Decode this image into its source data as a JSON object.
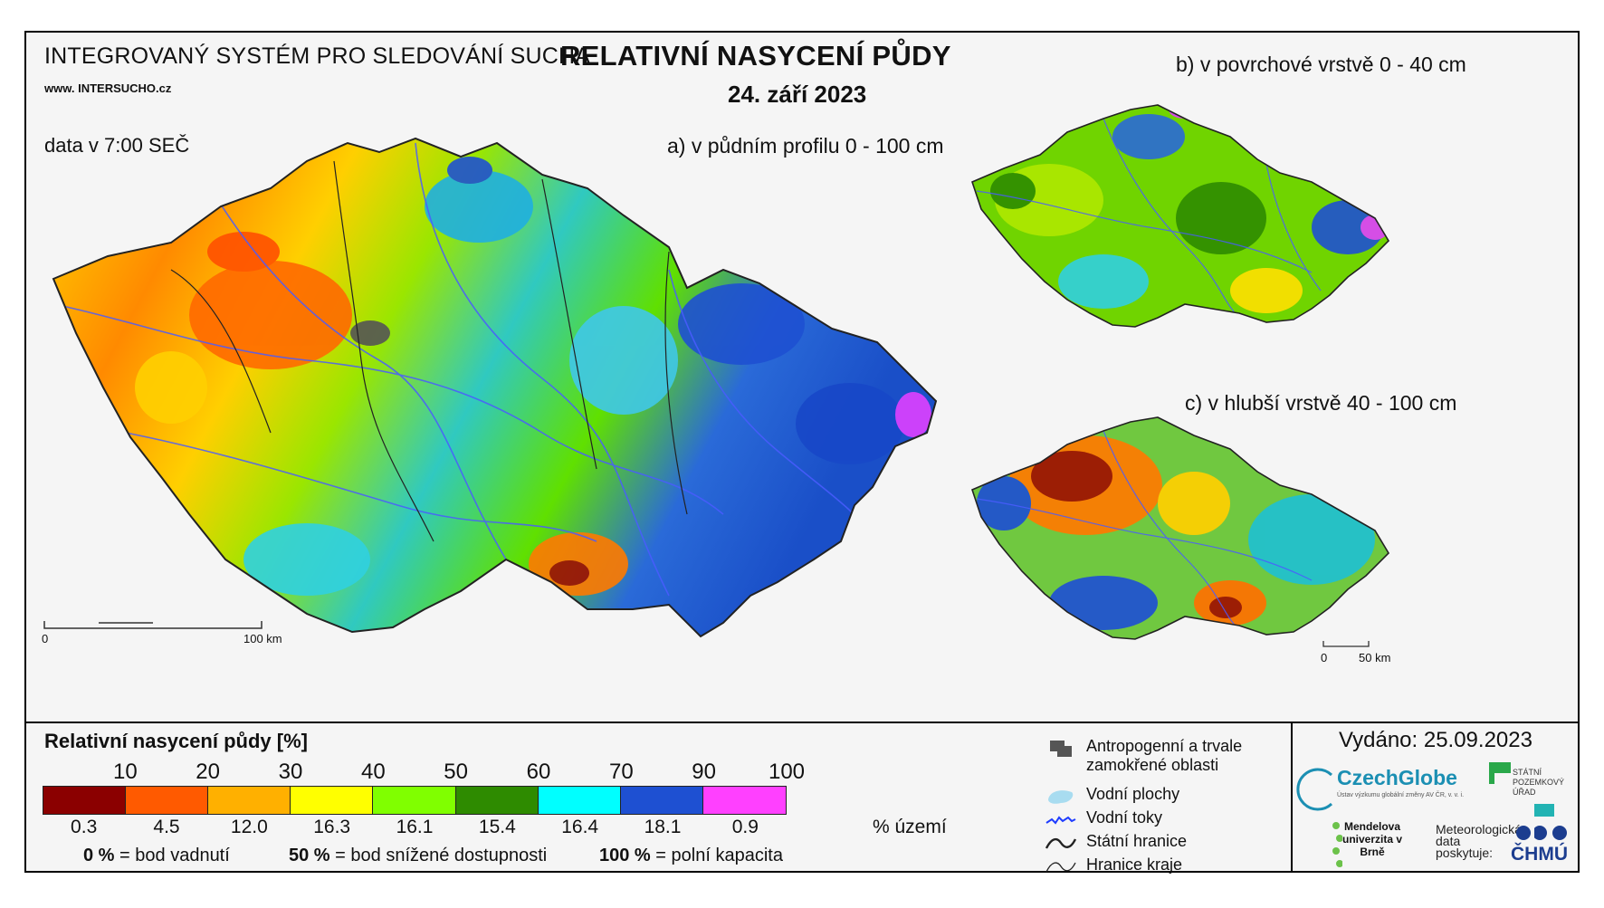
{
  "header": {
    "system_title": "INTEGROVANÝ SYSTÉM PRO SLEDOVÁNÍ SUCHA",
    "website": "www. INTERSUCHO.cz",
    "data_time": "data v 7:00 SEČ",
    "main_title": "RELATIVNÍ NASYCENÍ PŮDY",
    "date": "24. září 2023"
  },
  "maps": {
    "a": "a) v půdním profilu 0 - 100 cm",
    "b": "b) v povrchové vrstvě 0 - 40 cm",
    "c": "c) v hlubší vrstvě 40 - 100 cm"
  },
  "scale_bars": {
    "main": {
      "start": "0",
      "end": "100 km"
    },
    "small": {
      "start": "0",
      "end": "50 km"
    }
  },
  "legend": {
    "title": "Relativní nasycení půdy [%]",
    "ticks": [
      "10",
      "20",
      "30",
      "40",
      "50",
      "60",
      "70",
      "90",
      "100"
    ],
    "classes": [
      {
        "color": "#8b0000",
        "share": "0.3"
      },
      {
        "color": "#ff5a00",
        "share": "4.5"
      },
      {
        "color": "#ffb000",
        "share": "12.0"
      },
      {
        "color": "#ffff00",
        "share": "16.3"
      },
      {
        "color": "#80ff00",
        "share": "16.1"
      },
      {
        "color": "#2e8b00",
        "share": "15.4"
      },
      {
        "color": "#00ffff",
        "share": "16.4"
      },
      {
        "color": "#1e50d2",
        "share": "18.1"
      },
      {
        "color": "#ff40ff",
        "share": "0.9"
      }
    ],
    "share_unit": "% území",
    "definitions": [
      {
        "value": "0 %",
        "text": "= bod vadnutí"
      },
      {
        "value": "50 %",
        "text": "= bod snížené dostupnosti"
      },
      {
        "value": "100 %",
        "text": "= polní kapacita"
      }
    ]
  },
  "symbols": [
    {
      "icon": "urban-area-icon",
      "label": "Antropogenní a trvale zamokřené oblasti"
    },
    {
      "icon": "water-body-icon",
      "label": "Vodní plochy"
    },
    {
      "icon": "river-icon",
      "label": "Vodní toky"
    },
    {
      "icon": "state-border-icon",
      "label": "Státní hranice"
    },
    {
      "icon": "region-border-icon",
      "label": "Hranice kraje"
    }
  ],
  "issued": "Vydáno: 25.09.2023",
  "logos": {
    "czechglobe": "CzechGlobe",
    "czechglobe_sub": "Ústav výzkumu globální změny AV ČR, v. v. i.",
    "spu": "STÁTNÍ POZEMKOVÝ ÚŘAD",
    "mendelu": "Mendelova univerzita v Brně",
    "met_text": "Meteorologická data poskytuje:",
    "chmu": "ČHMÚ"
  }
}
